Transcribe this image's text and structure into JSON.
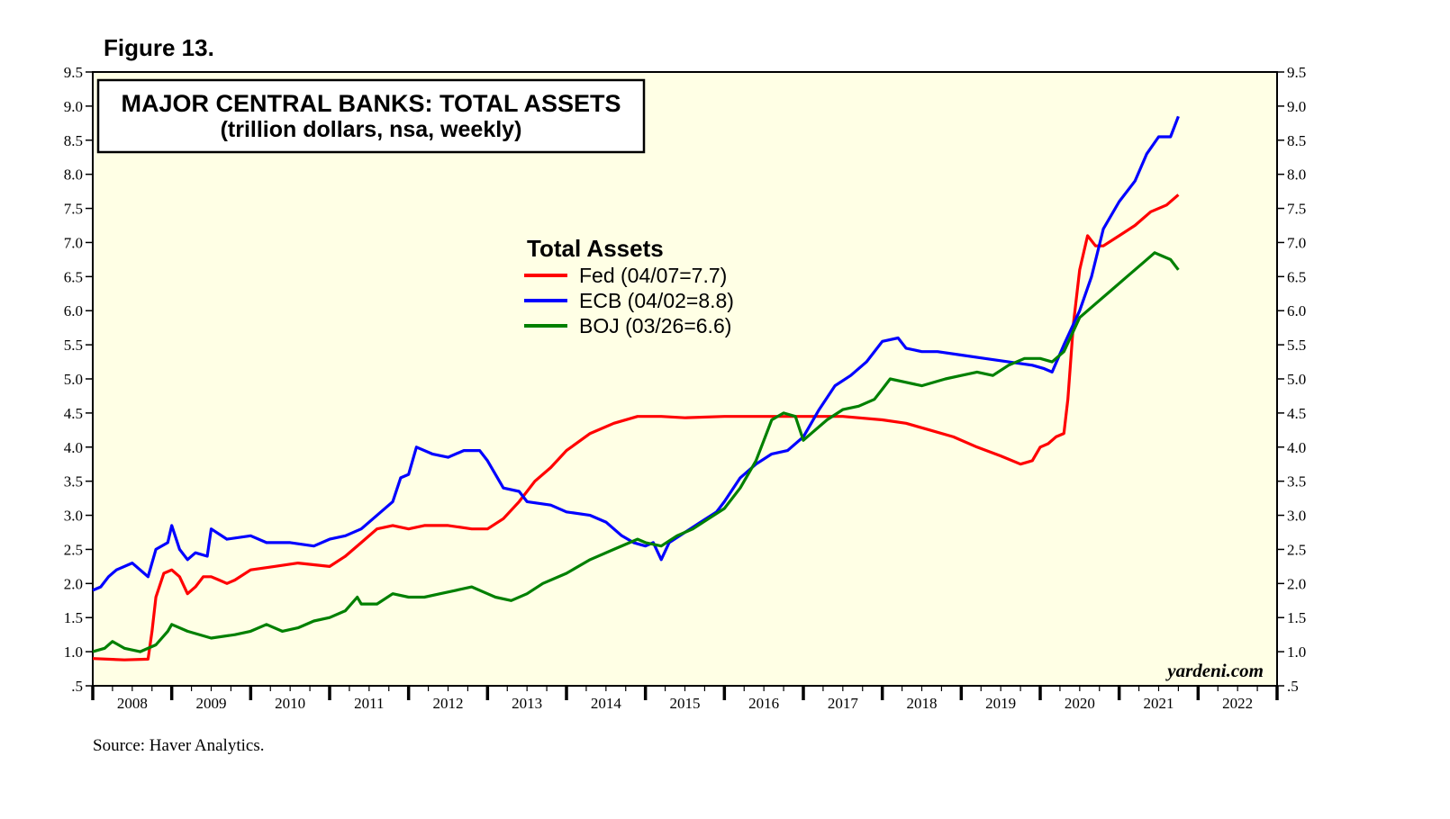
{
  "figure_label": "Figure 13.",
  "source": "Source: Haver Analytics.",
  "watermark": "yardeni.com",
  "chart_data": {
    "type": "line",
    "title": "MAJOR CENTRAL BANKS: TOTAL ASSETS",
    "subtitle": "(trillion dollars, nsa, weekly)",
    "legend_title": "Total Assets",
    "legend_placement": "top-center",
    "ylim": [
      0.5,
      9.5
    ],
    "xlim": [
      2008.0,
      2023.0
    ],
    "y_ticks": [
      0.5,
      1.0,
      1.5,
      2.0,
      2.5,
      3.0,
      3.5,
      4.0,
      4.5,
      5.0,
      5.5,
      6.0,
      6.5,
      7.0,
      7.5,
      8.0,
      8.5,
      9.0,
      9.5
    ],
    "y_tick_labels": [
      ".5",
      "1.0",
      "1.5",
      "2.0",
      "2.5",
      "3.0",
      "3.5",
      "4.0",
      "4.5",
      "5.0",
      "5.5",
      "6.0",
      "6.5",
      "7.0",
      "7.5",
      "8.0",
      "8.5",
      "9.0",
      "9.5"
    ],
    "x_tick_labels": [
      "2008",
      "2009",
      "2010",
      "2011",
      "2012",
      "2013",
      "2014",
      "2015",
      "2016",
      "2017",
      "2018",
      "2019",
      "2020",
      "2021",
      "2022"
    ],
    "grid": false,
    "background": "#ffffe5",
    "series": [
      {
        "name": "Fed (04/07=7.7)",
        "color": "#ff0000",
        "points": [
          [
            2008.0,
            0.9
          ],
          [
            2008.4,
            0.88
          ],
          [
            2008.7,
            0.89
          ],
          [
            2008.75,
            1.3
          ],
          [
            2008.8,
            1.8
          ],
          [
            2008.9,
            2.15
          ],
          [
            2009.0,
            2.2
          ],
          [
            2009.1,
            2.1
          ],
          [
            2009.2,
            1.85
          ],
          [
            2009.3,
            1.95
          ],
          [
            2009.4,
            2.1
          ],
          [
            2009.5,
            2.1
          ],
          [
            2009.6,
            2.05
          ],
          [
            2009.7,
            2.0
          ],
          [
            2009.8,
            2.05
          ],
          [
            2010.0,
            2.2
          ],
          [
            2010.3,
            2.25
          ],
          [
            2010.6,
            2.3
          ],
          [
            2011.0,
            2.25
          ],
          [
            2011.2,
            2.4
          ],
          [
            2011.4,
            2.6
          ],
          [
            2011.6,
            2.8
          ],
          [
            2011.8,
            2.85
          ],
          [
            2012.0,
            2.8
          ],
          [
            2012.2,
            2.85
          ],
          [
            2012.5,
            2.85
          ],
          [
            2012.8,
            2.8
          ],
          [
            2013.0,
            2.8
          ],
          [
            2013.2,
            2.95
          ],
          [
            2013.4,
            3.2
          ],
          [
            2013.6,
            3.5
          ],
          [
            2013.8,
            3.7
          ],
          [
            2014.0,
            3.95
          ],
          [
            2014.3,
            4.2
          ],
          [
            2014.6,
            4.35
          ],
          [
            2014.9,
            4.45
          ],
          [
            2015.2,
            4.45
          ],
          [
            2015.5,
            4.43
          ],
          [
            2016.0,
            4.45
          ],
          [
            2016.5,
            4.45
          ],
          [
            2017.0,
            4.45
          ],
          [
            2017.5,
            4.45
          ],
          [
            2018.0,
            4.4
          ],
          [
            2018.3,
            4.35
          ],
          [
            2018.6,
            4.25
          ],
          [
            2018.9,
            4.15
          ],
          [
            2019.2,
            4.0
          ],
          [
            2019.5,
            3.87
          ],
          [
            2019.75,
            3.75
          ],
          [
            2019.9,
            3.8
          ],
          [
            2020.0,
            4.0
          ],
          [
            2020.1,
            4.05
          ],
          [
            2020.2,
            4.15
          ],
          [
            2020.3,
            4.2
          ],
          [
            2020.35,
            4.7
          ],
          [
            2020.42,
            5.8
          ],
          [
            2020.5,
            6.6
          ],
          [
            2020.6,
            7.1
          ],
          [
            2020.7,
            6.95
          ],
          [
            2020.8,
            6.95
          ],
          [
            2021.0,
            7.1
          ],
          [
            2021.2,
            7.25
          ],
          [
            2021.4,
            7.45
          ],
          [
            2021.6,
            7.55
          ],
          [
            2021.75,
            7.7
          ]
        ]
      },
      {
        "name": "ECB (04/02=8.8)",
        "color": "#0000ff",
        "points": [
          [
            2008.0,
            1.9
          ],
          [
            2008.1,
            1.95
          ],
          [
            2008.2,
            2.1
          ],
          [
            2008.3,
            2.2
          ],
          [
            2008.5,
            2.3
          ],
          [
            2008.6,
            2.2
          ],
          [
            2008.7,
            2.1
          ],
          [
            2008.8,
            2.5
          ],
          [
            2008.95,
            2.6
          ],
          [
            2009.0,
            2.85
          ],
          [
            2009.1,
            2.5
          ],
          [
            2009.2,
            2.35
          ],
          [
            2009.3,
            2.45
          ],
          [
            2009.45,
            2.4
          ],
          [
            2009.5,
            2.8
          ],
          [
            2009.7,
            2.65
          ],
          [
            2010.0,
            2.7
          ],
          [
            2010.2,
            2.6
          ],
          [
            2010.5,
            2.6
          ],
          [
            2010.8,
            2.55
          ],
          [
            2011.0,
            2.65
          ],
          [
            2011.2,
            2.7
          ],
          [
            2011.4,
            2.8
          ],
          [
            2011.6,
            3.0
          ],
          [
            2011.8,
            3.2
          ],
          [
            2011.9,
            3.55
          ],
          [
            2012.0,
            3.6
          ],
          [
            2012.1,
            4.0
          ],
          [
            2012.3,
            3.9
          ],
          [
            2012.5,
            3.85
          ],
          [
            2012.7,
            3.95
          ],
          [
            2012.9,
            3.95
          ],
          [
            2013.0,
            3.8
          ],
          [
            2013.2,
            3.4
          ],
          [
            2013.4,
            3.35
          ],
          [
            2013.5,
            3.2
          ],
          [
            2013.8,
            3.15
          ],
          [
            2014.0,
            3.05
          ],
          [
            2014.3,
            3.0
          ],
          [
            2014.5,
            2.9
          ],
          [
            2014.7,
            2.7
          ],
          [
            2014.85,
            2.6
          ],
          [
            2015.0,
            2.55
          ],
          [
            2015.1,
            2.6
          ],
          [
            2015.2,
            2.35
          ],
          [
            2015.3,
            2.6
          ],
          [
            2015.5,
            2.75
          ],
          [
            2015.7,
            2.9
          ],
          [
            2015.9,
            3.05
          ],
          [
            2016.0,
            3.2
          ],
          [
            2016.2,
            3.55
          ],
          [
            2016.4,
            3.75
          ],
          [
            2016.6,
            3.9
          ],
          [
            2016.8,
            3.95
          ],
          [
            2017.0,
            4.15
          ],
          [
            2017.2,
            4.55
          ],
          [
            2017.4,
            4.9
          ],
          [
            2017.6,
            5.05
          ],
          [
            2017.8,
            5.25
          ],
          [
            2018.0,
            5.55
          ],
          [
            2018.2,
            5.6
          ],
          [
            2018.3,
            5.45
          ],
          [
            2018.5,
            5.4
          ],
          [
            2018.7,
            5.4
          ],
          [
            2019.0,
            5.35
          ],
          [
            2019.3,
            5.3
          ],
          [
            2019.6,
            5.25
          ],
          [
            2019.9,
            5.2
          ],
          [
            2020.05,
            5.15
          ],
          [
            2020.15,
            5.1
          ],
          [
            2020.3,
            5.5
          ],
          [
            2020.5,
            6.0
          ],
          [
            2020.65,
            6.5
          ],
          [
            2020.8,
            7.2
          ],
          [
            2021.0,
            7.6
          ],
          [
            2021.2,
            7.9
          ],
          [
            2021.35,
            8.3
          ],
          [
            2021.5,
            8.55
          ],
          [
            2021.65,
            8.55
          ],
          [
            2021.75,
            8.85
          ]
        ]
      },
      {
        "name": "BOJ (03/26=6.6)",
        "color": "#008000",
        "points": [
          [
            2008.0,
            1.0
          ],
          [
            2008.15,
            1.05
          ],
          [
            2008.25,
            1.15
          ],
          [
            2008.4,
            1.05
          ],
          [
            2008.6,
            1.0
          ],
          [
            2008.8,
            1.1
          ],
          [
            2008.95,
            1.3
          ],
          [
            2009.0,
            1.4
          ],
          [
            2009.2,
            1.3
          ],
          [
            2009.5,
            1.2
          ],
          [
            2009.8,
            1.25
          ],
          [
            2010.0,
            1.3
          ],
          [
            2010.2,
            1.4
          ],
          [
            2010.4,
            1.3
          ],
          [
            2010.6,
            1.35
          ],
          [
            2010.8,
            1.45
          ],
          [
            2011.0,
            1.5
          ],
          [
            2011.2,
            1.6
          ],
          [
            2011.35,
            1.8
          ],
          [
            2011.4,
            1.7
          ],
          [
            2011.6,
            1.7
          ],
          [
            2011.8,
            1.85
          ],
          [
            2012.0,
            1.8
          ],
          [
            2012.2,
            1.8
          ],
          [
            2012.4,
            1.85
          ],
          [
            2012.6,
            1.9
          ],
          [
            2012.8,
            1.95
          ],
          [
            2013.0,
            1.85
          ],
          [
            2013.1,
            1.8
          ],
          [
            2013.3,
            1.75
          ],
          [
            2013.5,
            1.85
          ],
          [
            2013.7,
            2.0
          ],
          [
            2014.0,
            2.15
          ],
          [
            2014.3,
            2.35
          ],
          [
            2014.6,
            2.5
          ],
          [
            2014.9,
            2.65
          ],
          [
            2015.0,
            2.6
          ],
          [
            2015.2,
            2.55
          ],
          [
            2015.4,
            2.7
          ],
          [
            2015.6,
            2.8
          ],
          [
            2015.8,
            2.95
          ],
          [
            2016.0,
            3.1
          ],
          [
            2016.2,
            3.4
          ],
          [
            2016.4,
            3.8
          ],
          [
            2016.5,
            4.1
          ],
          [
            2016.6,
            4.4
          ],
          [
            2016.75,
            4.5
          ],
          [
            2016.9,
            4.45
          ],
          [
            2017.0,
            4.1
          ],
          [
            2017.1,
            4.2
          ],
          [
            2017.3,
            4.4
          ],
          [
            2017.5,
            4.55
          ],
          [
            2017.7,
            4.6
          ],
          [
            2017.9,
            4.7
          ],
          [
            2018.0,
            4.85
          ],
          [
            2018.1,
            5.0
          ],
          [
            2018.3,
            4.95
          ],
          [
            2018.5,
            4.9
          ],
          [
            2018.8,
            5.0
          ],
          [
            2019.0,
            5.05
          ],
          [
            2019.2,
            5.1
          ],
          [
            2019.4,
            5.05
          ],
          [
            2019.6,
            5.2
          ],
          [
            2019.8,
            5.3
          ],
          [
            2020.0,
            5.3
          ],
          [
            2020.15,
            5.25
          ],
          [
            2020.3,
            5.4
          ],
          [
            2020.5,
            5.9
          ],
          [
            2020.7,
            6.1
          ],
          [
            2020.9,
            6.3
          ],
          [
            2021.1,
            6.5
          ],
          [
            2021.3,
            6.7
          ],
          [
            2021.45,
            6.85
          ],
          [
            2021.55,
            6.8
          ],
          [
            2021.65,
            6.75
          ],
          [
            2021.75,
            6.6
          ]
        ]
      }
    ]
  }
}
